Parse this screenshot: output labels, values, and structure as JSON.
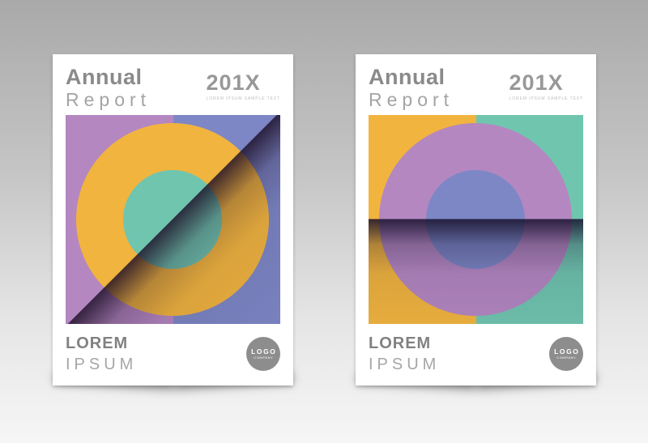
{
  "page": {
    "bg_top": "#a9a9a9",
    "bg_bottom": "#f6f6f6"
  },
  "posters": [
    {
      "title_line1": "Annual",
      "title_line2": "Report",
      "year": "201X",
      "year_caption": "LOREM IPSUM SAMPLE TEXT",
      "footer_title": "LOREM",
      "footer_subtitle": "IPSUM",
      "logo_line1": "LOGO",
      "logo_line2": "COMPANY",
      "graphic": {
        "fold": "diagonal",
        "bg_left_color": "#b487c1",
        "bg_right_color": "#7d87c6",
        "outer_circle_color": "#f1b43e",
        "inner_circle_color": "#70c5af"
      }
    },
    {
      "title_line1": "Annual",
      "title_line2": "Report",
      "year": "201X",
      "year_caption": "LOREM IPSUM SAMPLE TEXT",
      "footer_title": "LOREM",
      "footer_subtitle": "IPSUM",
      "logo_line1": "LOGO",
      "logo_line2": "COMPANY",
      "graphic": {
        "fold": "horizontal",
        "bg_left_color": "#f1b43e",
        "bg_right_color": "#70c5af",
        "outer_circle_color": "#b487c1",
        "inner_circle_color": "#7d87c6"
      }
    }
  ]
}
